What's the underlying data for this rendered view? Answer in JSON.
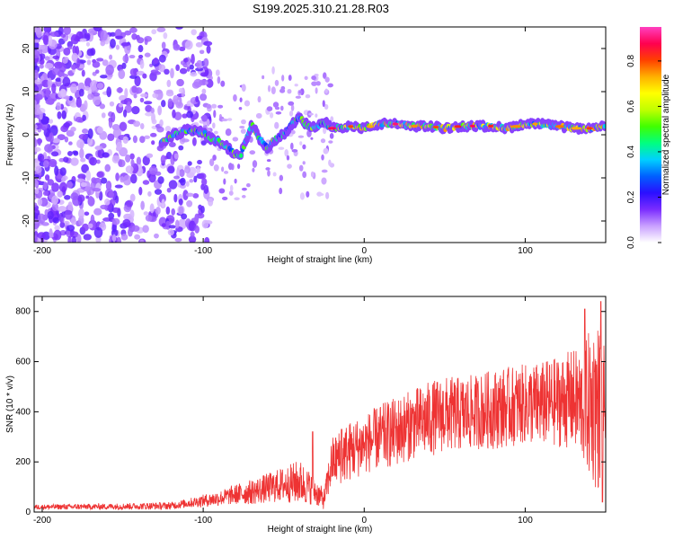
{
  "title": "S199.2025.310.21.28.R03",
  "chart_data": [
    {
      "type": "heatmap",
      "xlabel": "Height of straight line (km)",
      "ylabel": "Frequency (Hz)",
      "xlim": [
        -205,
        150
      ],
      "ylim": [
        -25,
        25
      ],
      "xticks": [
        -200,
        -100,
        0,
        100
      ],
      "yticks": [
        -20,
        -10,
        0,
        10,
        20
      ],
      "colorbar": {
        "label": "Normalized spectral amplitude",
        "range": [
          0,
          0.95
        ],
        "ticks": [
          0.0,
          0.2,
          0.4,
          0.6,
          0.8
        ],
        "colors": [
          "#ffffff",
          "#c9a0ff",
          "#7a2cff",
          "#2a0fff",
          "#0060ff",
          "#00d0ff",
          "#00ff80",
          "#40ff00",
          "#c0ff00",
          "#ffff00",
          "#ffb000",
          "#ff4000",
          "#ff0050",
          "#ff40c0"
        ]
      },
      "ridge": {
        "x": [
          -125,
          -118,
          -110,
          -100,
          -95,
          -90,
          -85,
          -80,
          -77,
          -70,
          -65,
          -60,
          -55,
          -50,
          -45,
          -40,
          -35,
          -30,
          -25,
          -20,
          -10,
          0,
          10,
          20,
          30,
          40,
          50,
          60,
          70,
          80,
          90,
          100,
          110,
          120,
          130,
          140,
          150
        ],
        "y": [
          -1.5,
          0,
          1,
          0.5,
          -1,
          -1.5,
          -3,
          -4.5,
          -5,
          2.5,
          -1,
          -3,
          -1,
          0,
          2.5,
          4,
          2,
          1.5,
          3,
          1.5,
          2,
          1.5,
          2.5,
          2.5,
          2,
          2,
          1.5,
          2,
          2,
          2,
          1.5,
          2.5,
          2.5,
          2,
          1.5,
          1.5,
          2
        ]
      }
    },
    {
      "type": "line",
      "xlabel": "Height of straight line (km)",
      "ylabel": "SNR (10 * v/v)",
      "xlim": [
        -205,
        150
      ],
      "ylim": [
        0,
        860
      ],
      "xticks": [
        -200,
        -100,
        0,
        100
      ],
      "yticks": [
        0,
        200,
        400,
        600,
        800
      ],
      "color": "#ee3333",
      "envelope": {
        "x": [
          -205,
          -160,
          -120,
          -110,
          -100,
          -90,
          -80,
          -70,
          -60,
          -50,
          -40,
          -32,
          -25,
          -20,
          -15,
          -10,
          0,
          10,
          20,
          30,
          40,
          50,
          60,
          70,
          80,
          90,
          100,
          110,
          120,
          130,
          135,
          140,
          145,
          150
        ],
        "y": [
          20,
          22,
          25,
          35,
          45,
          55,
          70,
          80,
          95,
          110,
          120,
          90,
          50,
          200,
          220,
          240,
          270,
          300,
          320,
          350,
          370,
          390,
          390,
          400,
          410,
          420,
          430,
          430,
          440,
          450,
          430,
          430,
          420,
          440
        ],
        "spread": [
          10,
          12,
          15,
          18,
          25,
          30,
          40,
          50,
          60,
          70,
          90,
          60,
          40,
          100,
          110,
          120,
          120,
          130,
          140,
          140,
          150,
          150,
          150,
          150,
          160,
          160,
          160,
          170,
          180,
          200,
          220,
          300,
          350,
          200
        ]
      },
      "spikes": [
        {
          "x": -32,
          "y": 320
        },
        {
          "x": -14,
          "y": 330
        },
        {
          "x": 137,
          "y": 810
        },
        {
          "x": 143,
          "y": 560
        },
        {
          "x": 147,
          "y": 840
        },
        {
          "x": 148,
          "y": 40
        }
      ]
    }
  ]
}
